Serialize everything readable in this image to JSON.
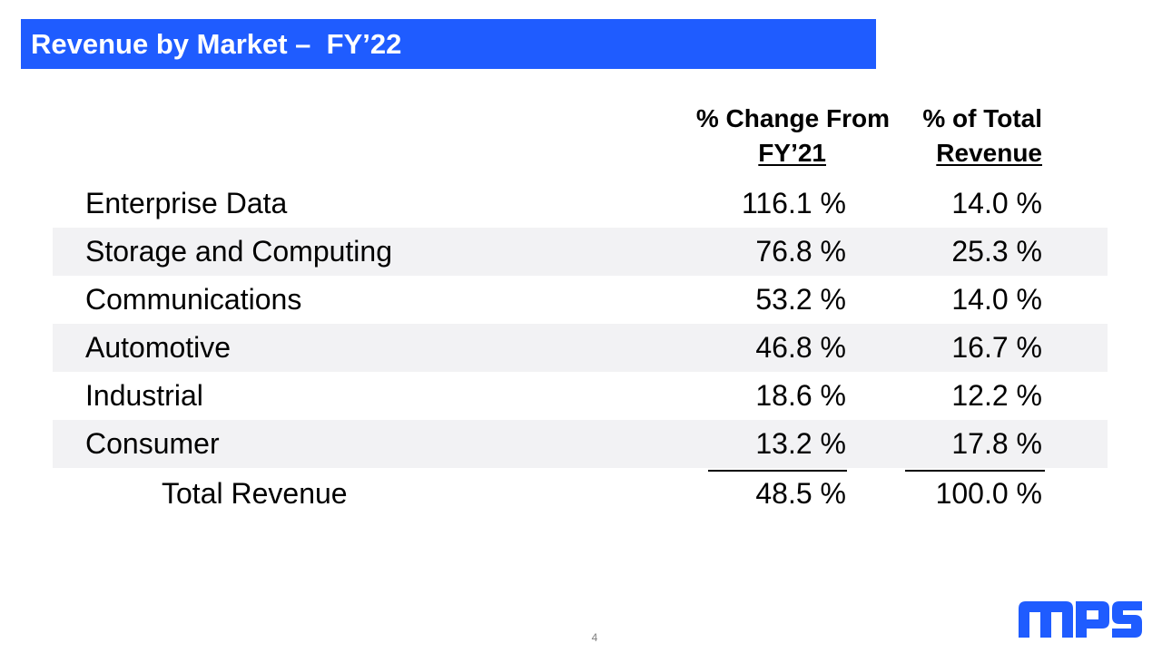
{
  "title": "Revenue by Market –  FY’22",
  "headers": {
    "change": {
      "line1": "% Change From",
      "line2": "FY’21"
    },
    "total": {
      "line1": "% of Total",
      "line2": "Revenue"
    }
  },
  "rows": [
    {
      "market": "Enterprise Data",
      "change": "116.1 %",
      "share": "14.0 %"
    },
    {
      "market": "Storage and Computing",
      "change": "76.8 %",
      "share": "25.3 %"
    },
    {
      "market": "Communications",
      "change": "53.2 %",
      "share": "14.0 %"
    },
    {
      "market": "Automotive",
      "change": "46.8 %",
      "share": "16.7 %"
    },
    {
      "market": "Industrial",
      "change": "18.6 %",
      "share": "12.2 %"
    },
    {
      "market": "Consumer",
      "change": "13.2 %",
      "share": "17.8 %"
    }
  ],
  "total": {
    "label": "Total Revenue",
    "change": "48.5 %",
    "share": "100.0 %"
  },
  "page_number": "4",
  "logo": {
    "text": "MPS",
    "color": "#1f5cff"
  },
  "colors": {
    "title_bar": "#1f5cff",
    "row_shade": "#f2f2f4"
  }
}
